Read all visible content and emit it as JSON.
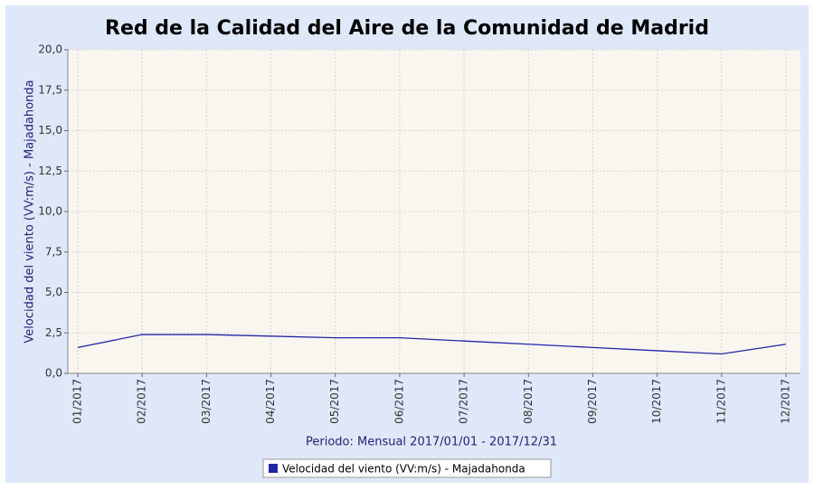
{
  "chart_data": {
    "type": "line",
    "title": "Red de la Calidad del Aire de la Comunidad de Madrid",
    "x_label": "Periodo: Mensual 2017/01/01 - 2017/12/31",
    "y_label": "Velocidad del viento (VV:m/s) - Majadahonda",
    "categories": [
      "01/2017",
      "02/2017",
      "03/2017",
      "04/2017",
      "05/2017",
      "06/2017",
      "07/2017",
      "08/2017",
      "09/2017",
      "10/2017",
      "11/2017",
      "12/2017"
    ],
    "series": [
      {
        "name": "Velocidad del viento (VV:m/s) - Majadahonda",
        "color": "#2424a8",
        "values": [
          1.6,
          2.4,
          2.4,
          2.3,
          2.2,
          2.2,
          2.0,
          1.8,
          1.6,
          1.4,
          1.2,
          1.8
        ]
      }
    ],
    "ylim": [
      0,
      20
    ],
    "yticks": [
      {
        "value": 0,
        "label": "0,0"
      },
      {
        "value": 2.5,
        "label": "2,5"
      },
      {
        "value": 5,
        "label": "5,0"
      },
      {
        "value": 7.5,
        "label": "7,5"
      },
      {
        "value": 10,
        "label": "10,0"
      },
      {
        "value": 12.5,
        "label": "12,5"
      },
      {
        "value": 15,
        "label": "15,0"
      },
      {
        "value": 17.5,
        "label": "17,5"
      },
      {
        "value": 20,
        "label": "20,0"
      }
    ],
    "grid": true
  }
}
